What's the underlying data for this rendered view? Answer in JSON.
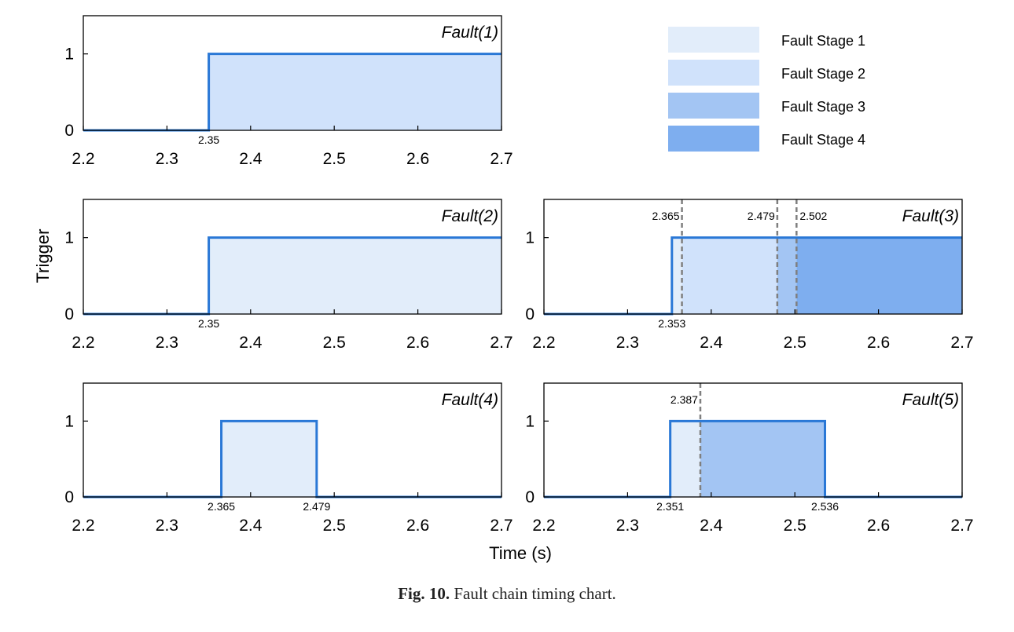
{
  "colors": {
    "signal": "#2a78d6",
    "stage_1": "#e2edfa",
    "stage_2": "#d0e2fb",
    "stage_3": "#a3c5f3",
    "stage_4": "#7eaeef",
    "marker_line": "#7f7f7f"
  },
  "legend": {
    "items": [
      {
        "label": "Fault Stage 1",
        "color": "#e2edfa"
      },
      {
        "label": "Fault Stage 2",
        "color": "#d0e2fb"
      },
      {
        "label": "Fault Stage 3",
        "color": "#a3c5f3"
      },
      {
        "label": "Fault Stage 4",
        "color": "#7eaeef"
      }
    ]
  },
  "axes": {
    "xlabel": "Time (s)",
    "ylabel": "Trigger"
  },
  "caption": {
    "label": "Fig. 10.",
    "text": "Fault chain timing chart."
  },
  "chart_data": [
    {
      "type": "area",
      "title": "Fault(1)",
      "xlim": [
        2.2,
        2.7
      ],
      "ylim": [
        0,
        1.5
      ],
      "xticks": [
        "2.2",
        "2.3",
        "2.4",
        "2.5",
        "2.6",
        "2.7"
      ],
      "yticks": [
        "0",
        "1"
      ],
      "signal": {
        "x": [
          2.2,
          2.35,
          2.35,
          2.7
        ],
        "y": [
          0,
          0,
          1,
          1
        ]
      },
      "stages": [
        {
          "stage": 2,
          "from": 2.35,
          "to": 2.7
        }
      ],
      "edge_labels": [
        {
          "x": 2.35,
          "text": "2.35"
        }
      ],
      "markers": []
    },
    {
      "type": "area",
      "title": "Fault(2)",
      "xlim": [
        2.2,
        2.7
      ],
      "ylim": [
        0,
        1.5
      ],
      "xticks": [
        "2.2",
        "2.3",
        "2.4",
        "2.5",
        "2.6",
        "2.7"
      ],
      "yticks": [
        "0",
        "1"
      ],
      "signal": {
        "x": [
          2.2,
          2.35,
          2.35,
          2.7
        ],
        "y": [
          0,
          0,
          1,
          1
        ]
      },
      "stages": [
        {
          "stage": 1,
          "from": 2.35,
          "to": 2.7
        }
      ],
      "edge_labels": [
        {
          "x": 2.35,
          "text": "2.35"
        }
      ],
      "markers": []
    },
    {
      "type": "area",
      "title": "Fault(3)",
      "xlim": [
        2.2,
        2.7
      ],
      "ylim": [
        0,
        1.5
      ],
      "xticks": [
        "2.2",
        "2.3",
        "2.4",
        "2.5",
        "2.6",
        "2.7"
      ],
      "yticks": [
        "0",
        "1"
      ],
      "signal": {
        "x": [
          2.2,
          2.353,
          2.353,
          2.7
        ],
        "y": [
          0,
          0,
          1,
          1
        ]
      },
      "stages": [
        {
          "stage": 1,
          "from": 2.353,
          "to": 2.365
        },
        {
          "stage": 2,
          "from": 2.365,
          "to": 2.479
        },
        {
          "stage": 3,
          "from": 2.479,
          "to": 2.502
        },
        {
          "stage": 4,
          "from": 2.502,
          "to": 2.7
        }
      ],
      "edge_labels": [
        {
          "x": 2.353,
          "text": "2.353"
        }
      ],
      "markers": [
        {
          "x": 2.365,
          "text": "2.365",
          "side": "left"
        },
        {
          "x": 2.479,
          "text": "2.479",
          "side": "left"
        },
        {
          "x": 2.502,
          "text": "2.502",
          "side": "right"
        }
      ]
    },
    {
      "type": "area",
      "title": "Fault(4)",
      "xlim": [
        2.2,
        2.7
      ],
      "ylim": [
        0,
        1.5
      ],
      "xticks": [
        "2.2",
        "2.3",
        "2.4",
        "2.5",
        "2.6",
        "2.7"
      ],
      "yticks": [
        "0",
        "1"
      ],
      "signal": {
        "x": [
          2.2,
          2.365,
          2.365,
          2.479,
          2.479,
          2.7
        ],
        "y": [
          0,
          0,
          1,
          1,
          0,
          0
        ]
      },
      "stages": [
        {
          "stage": 1,
          "from": 2.365,
          "to": 2.479
        }
      ],
      "edge_labels": [
        {
          "x": 2.365,
          "text": "2.365"
        },
        {
          "x": 2.479,
          "text": "2.479"
        }
      ],
      "markers": []
    },
    {
      "type": "area",
      "title": "Fault(5)",
      "xlim": [
        2.2,
        2.7
      ],
      "ylim": [
        0,
        1.5
      ],
      "xticks": [
        "2.2",
        "2.3",
        "2.4",
        "2.5",
        "2.6",
        "2.7"
      ],
      "yticks": [
        "0",
        "1"
      ],
      "signal": {
        "x": [
          2.2,
          2.351,
          2.351,
          2.536,
          2.536,
          2.7
        ],
        "y": [
          0,
          0,
          1,
          1,
          0,
          0
        ]
      },
      "stages": [
        {
          "stage": 1,
          "from": 2.351,
          "to": 2.387
        },
        {
          "stage": 3,
          "from": 2.387,
          "to": 2.536
        }
      ],
      "edge_labels": [
        {
          "x": 2.351,
          "text": "2.351"
        },
        {
          "x": 2.536,
          "text": "2.536"
        }
      ],
      "markers": [
        {
          "x": 2.387,
          "text": "2.387",
          "side": "left"
        }
      ]
    }
  ]
}
